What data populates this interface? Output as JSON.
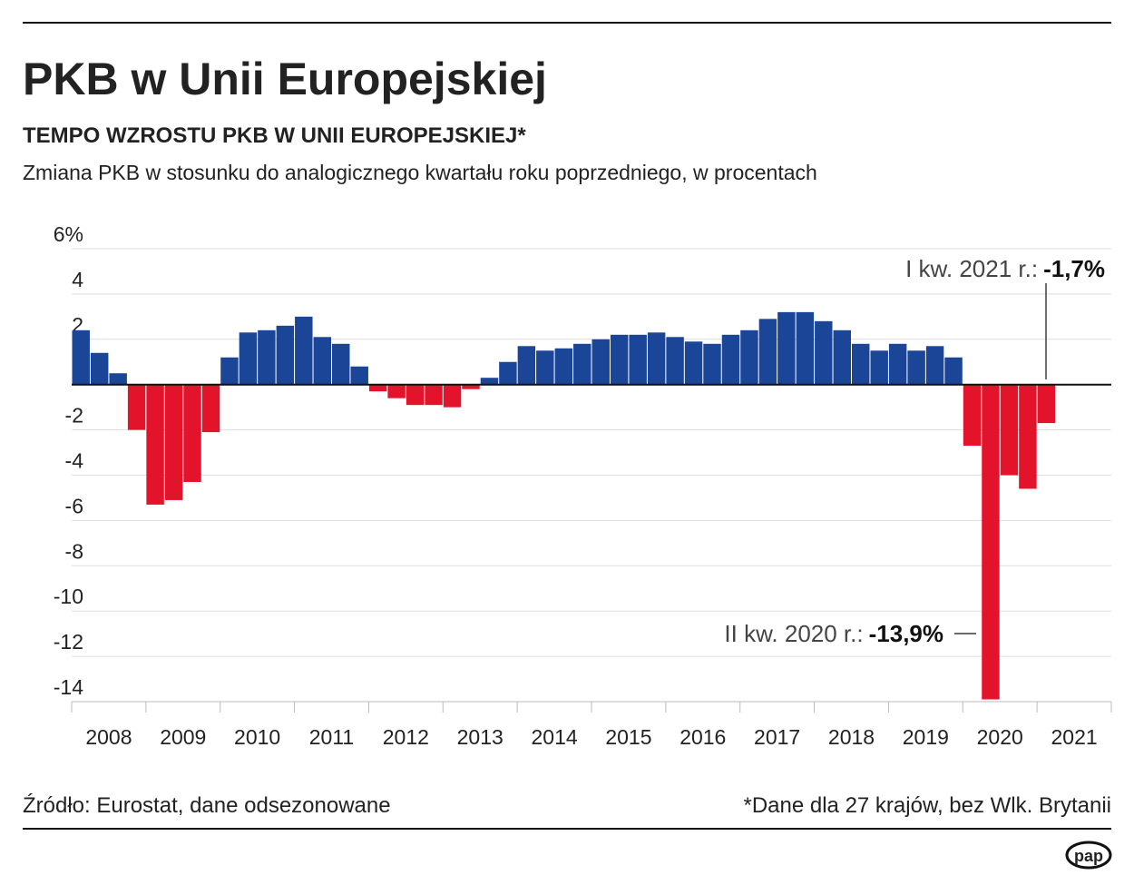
{
  "chart_data": {
    "type": "bar",
    "title": "PKB w Unii Europejskiej",
    "subtitle": "TEMPO WZROSTU PKB W UNII EUROPEJSKIEJ*",
    "description": "Zmiana PKB w stosunku do analogicznego kwartału roku poprzedniego, w procentach",
    "x_labels": [
      "2008",
      "2009",
      "2010",
      "2011",
      "2012",
      "2013",
      "2014",
      "2015",
      "2016",
      "2017",
      "2018",
      "2019",
      "2020",
      "2021"
    ],
    "values": [
      2.4,
      1.4,
      0.5,
      -2.0,
      -5.3,
      -5.1,
      -4.3,
      -2.1,
      1.2,
      2.3,
      2.4,
      2.6,
      3.0,
      2.1,
      1.8,
      0.8,
      -0.3,
      -0.6,
      -0.9,
      -0.9,
      -1.0,
      -0.2,
      0.3,
      1.0,
      1.7,
      1.5,
      1.6,
      1.8,
      2.0,
      2.2,
      2.2,
      2.3,
      2.1,
      1.9,
      1.8,
      2.2,
      2.4,
      2.9,
      3.2,
      3.2,
      2.8,
      2.4,
      1.8,
      1.5,
      1.8,
      1.5,
      1.7,
      1.2,
      -2.7,
      -13.9,
      -4.0,
      -4.6,
      -1.7
    ],
    "value_labels": [
      null,
      null,
      null,
      null,
      null,
      null,
      null,
      null,
      null,
      null,
      null,
      null,
      null,
      null,
      null,
      null,
      null,
      null,
      null,
      null,
      null,
      null,
      null,
      null,
      null,
      null,
      null,
      null,
      null,
      null,
      null,
      null,
      null,
      null,
      null,
      null,
      null,
      null,
      null,
      null,
      null,
      null,
      null,
      null,
      null,
      null,
      null,
      null,
      null,
      "-13,9%",
      null,
      null,
      "-1,7%"
    ],
    "annotations": [
      "I kw. 2021 r.:",
      "II kw. 2020 r.:"
    ],
    "color_positive": "#1b4597",
    "color_negative": "#e3132c",
    "ylim": [
      -14,
      6
    ],
    "yticks": [
      {
        "value": 6,
        "label": "6%"
      },
      4,
      2,
      0,
      -2,
      -4,
      -6,
      -8,
      -10,
      -12,
      -14
    ],
    "grid": true,
    "source": "Źródło: Eurostat, dane odsezonowane",
    "footnote": "*Dane dla 27 krajów, bez Wlk. Brytanii",
    "logo": "pap"
  }
}
